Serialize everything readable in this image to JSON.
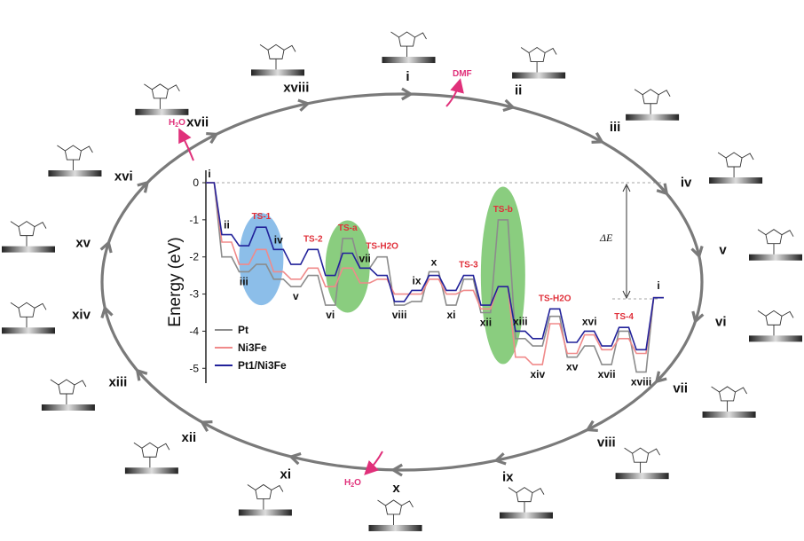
{
  "cycle_labels": [
    "i",
    "ii",
    "iii",
    "iv",
    "v",
    "vi",
    "vii",
    "viii",
    "ix",
    "x",
    "xi",
    "xii",
    "xiii",
    "xiv",
    "xv",
    "xvi",
    "xvii",
    "xviii"
  ],
  "released_species": [
    {
      "label": "DMF",
      "after_step": "xviii",
      "color": "#e0307a"
    },
    {
      "label": "H2O",
      "after_step": "xv",
      "color": "#e0307a"
    },
    {
      "label": "H2O",
      "after_step": "ix",
      "color": "#e0307a"
    }
  ],
  "colors": {
    "cycle": "#7a7a7a",
    "Pt": "#8c8c8c",
    "Ni3Fe": "#f08a8a",
    "Pt1/Ni3Fe": "#22229a",
    "ts_label": "#e0303a",
    "highlight_blue": "#5ba3e0",
    "highlight_green": "#59b848"
  },
  "icons": [
    "adsorbate-structure-icon",
    "catalyst-slab-icon",
    "release-arrow-icon"
  ],
  "chart_data": {
    "type": "line",
    "style": "step energy profile",
    "ylabel": "Energy (eV)",
    "ylim": [
      -5.4,
      0.2
    ],
    "yticks": [
      "0",
      "-1",
      "-2",
      "-3",
      "-4",
      "-5"
    ],
    "ytick_values": [
      0,
      -1,
      -2,
      -3,
      -4,
      -5
    ],
    "grid": false,
    "legend_position": "bottom-left",
    "annotation": "ΔE",
    "points": [
      {
        "label": "i",
        "kind": "state"
      },
      {
        "label": "ii",
        "kind": "state"
      },
      {
        "label": "iii",
        "kind": "state"
      },
      {
        "label": "TS-1",
        "kind": "ts",
        "highlight": "blue"
      },
      {
        "label": "iv",
        "kind": "state"
      },
      {
        "label": "v",
        "kind": "state"
      },
      {
        "label": "TS-2",
        "kind": "ts"
      },
      {
        "label": "vi",
        "kind": "state"
      },
      {
        "label": "TS-a",
        "kind": "ts",
        "highlight": "green"
      },
      {
        "label": "vii",
        "kind": "state"
      },
      {
        "label": "TS-H2O",
        "kind": "ts"
      },
      {
        "label": "viii",
        "kind": "state"
      },
      {
        "label": "ix",
        "kind": "state"
      },
      {
        "label": "x",
        "kind": "state"
      },
      {
        "label": "xi",
        "kind": "state"
      },
      {
        "label": "TS-3",
        "kind": "ts"
      },
      {
        "label": "xii",
        "kind": "state"
      },
      {
        "label": "TS-b",
        "kind": "ts",
        "highlight": "green"
      },
      {
        "label": "xiii",
        "kind": "state"
      },
      {
        "label": "xiv",
        "kind": "state"
      },
      {
        "label": "TS-H2O",
        "kind": "ts"
      },
      {
        "label": "xv",
        "kind": "state"
      },
      {
        "label": "xvi",
        "kind": "state"
      },
      {
        "label": "xvii",
        "kind": "state"
      },
      {
        "label": "TS-4",
        "kind": "ts"
      },
      {
        "label": "xviii",
        "kind": "state"
      },
      {
        "label": "i",
        "kind": "state"
      }
    ],
    "series": [
      {
        "name": "Pt",
        "color": "#8c8c8c",
        "values": [
          0,
          -2.0,
          -2.4,
          -2.2,
          -2.6,
          -2.8,
          -2.5,
          -3.3,
          -1.5,
          -2.3,
          -2.0,
          -3.3,
          -3.2,
          -2.4,
          -3.3,
          -2.6,
          -3.5,
          -1.0,
          -4.2,
          -4.4,
          -3.6,
          -4.7,
          -4.4,
          -4.9,
          -4.0,
          -5.1,
          -3.1
        ]
      },
      {
        "name": "Ni3Fe",
        "color": "#f08a8a",
        "values": [
          0,
          -1.6,
          -2.2,
          -1.8,
          -2.4,
          -2.6,
          -2.3,
          -2.8,
          -2.3,
          -2.7,
          -2.6,
          -3.0,
          -3.0,
          -2.6,
          -3.0,
          -2.9,
          -3.4,
          -2.8,
          -4.7,
          -4.9,
          -3.8,
          -4.6,
          -4.1,
          -4.5,
          -4.2,
          -4.6,
          -3.1
        ]
      },
      {
        "name": "Pt1/Ni3Fe",
        "color": "#22229a",
        "values": [
          0,
          -1.4,
          -1.7,
          -1.2,
          -1.8,
          -2.2,
          -1.8,
          -2.5,
          -1.9,
          -2.3,
          -2.5,
          -3.2,
          -2.9,
          -2.5,
          -2.9,
          -2.5,
          -3.3,
          -2.8,
          -4.0,
          -4.2,
          -3.4,
          -4.3,
          -4.0,
          -4.4,
          -3.9,
          -4.5,
          -3.1
        ]
      }
    ]
  }
}
